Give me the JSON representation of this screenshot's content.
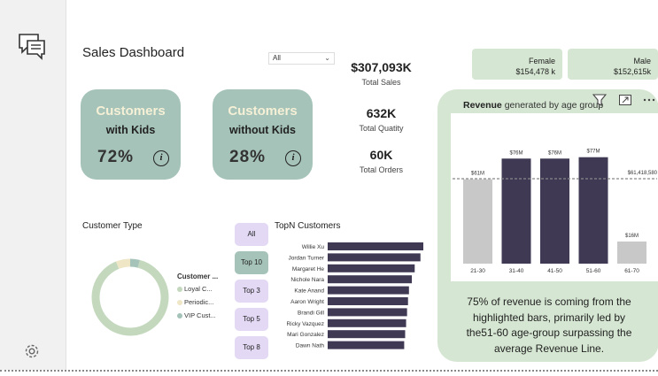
{
  "dashboard": {
    "title": "Sales Dashboard",
    "slicer_value": "All"
  },
  "cards": [
    {
      "line1": "Customers",
      "line2": "with Kids",
      "percent": "72%",
      "info": "i"
    },
    {
      "line1": "Customers",
      "line2": "without Kids",
      "percent": "28%",
      "info": "i"
    }
  ],
  "kpis": [
    {
      "value": "$307,093K",
      "label": "Total Sales"
    },
    {
      "value": "632K",
      "label": "Total Quatity"
    },
    {
      "value": "60K",
      "label": "Total Orders"
    }
  ],
  "gender": [
    {
      "label": "Female",
      "value": "$154,478 k"
    },
    {
      "label": "Male",
      "value": "$152,615k"
    }
  ],
  "customer_type": {
    "title": "Customer Type",
    "legend_title": "Customer ...",
    "legend": [
      {
        "label": "Loyal C...",
        "color": "#c3d8bd"
      },
      {
        "label": "Periodic...",
        "color": "#efe6c6"
      },
      {
        "label": "VIP Cust...",
        "color": "#a5c3b9"
      }
    ]
  },
  "topn": {
    "title": "TopN Customers",
    "buttons": [
      "All",
      "Top 10",
      "Top 3",
      "Top 5",
      "Top 8"
    ],
    "selected_button": "Top 10"
  },
  "revenue": {
    "title_bold": "Revenue",
    "title_rest": " generated by age group",
    "avg_label": "$61,418,580",
    "caption_lines": [
      "75% of revenue is coming from the",
      "highlighted bars, primarily led by",
      "the51-60 age-group surpassing the",
      "average Revenue Line."
    ]
  },
  "icons": {
    "chat": "chat-icon",
    "settings": "gear-icon",
    "filter": "filter-icon",
    "expand": "expand-icon",
    "more": "more-options-icon",
    "info": "info-icon"
  },
  "chart_data": [
    {
      "type": "pie",
      "title": "Customer Type",
      "categories": [
        "Loyal C...",
        "Periodic...",
        "VIP Cust..."
      ],
      "values": [
        90,
        6,
        4
      ],
      "colors": [
        "#c3d8bd",
        "#efe6c6",
        "#a5c3b9"
      ]
    },
    {
      "type": "bar",
      "title": "TopN Customers",
      "orientation": "horizontal",
      "categories": [
        "Willie Xu",
        "Jordan Turner",
        "Margaret He",
        "Nichole Nara",
        "Kate Anand",
        "Aaron Wright",
        "Brandi Gill",
        "Ricky Vazquez",
        "Mari Gonzalez",
        "Dawn Nath"
      ],
      "values": [
        100,
        97,
        91,
        88,
        85,
        84,
        83,
        82,
        81,
        80
      ],
      "color": "#3f3954"
    },
    {
      "type": "bar",
      "title": "Revenue generated by age group",
      "categories": [
        "21-30",
        "31-40",
        "41-50",
        "51-60",
        "61-70"
      ],
      "values": [
        61,
        76,
        76,
        77,
        16
      ],
      "data_labels": [
        "$61M",
        "$76M",
        "$76M",
        "$77M",
        "$16M"
      ],
      "colors": [
        "#c8c8c8",
        "#3f3954",
        "#3f3954",
        "#3f3954",
        "#c8c8c8"
      ],
      "reference_line": 61.42,
      "ylim": [
        0,
        80
      ]
    }
  ]
}
